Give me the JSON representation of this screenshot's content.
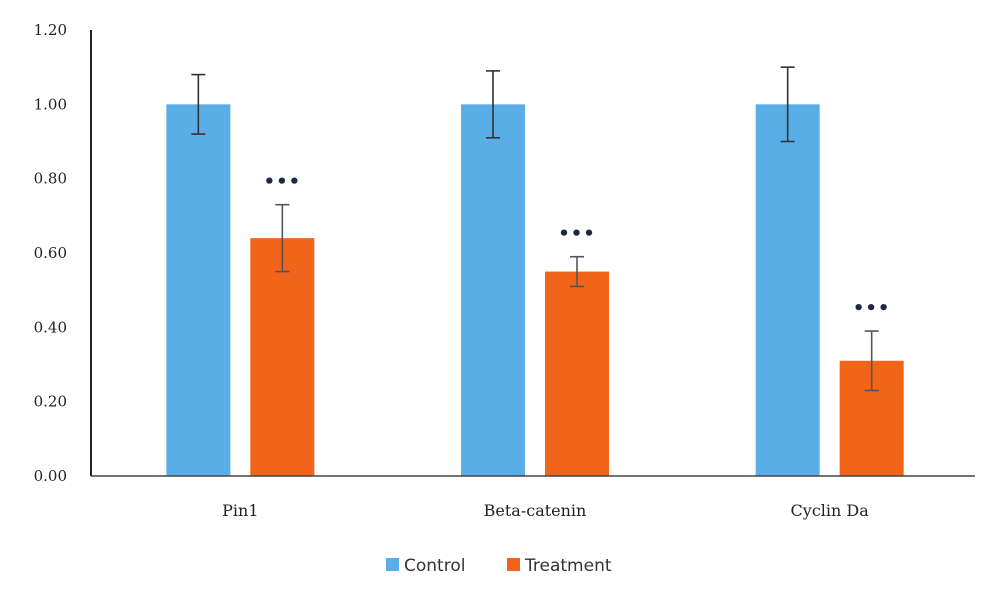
{
  "chart_data": {
    "type": "bar",
    "title": "",
    "xlabel": "",
    "ylabel": "",
    "ylim": [
      0,
      1.2
    ],
    "yticks": [
      "0.00",
      "0.20",
      "0.40",
      "0.60",
      "0.80",
      "1.00",
      "1.20"
    ],
    "categories": [
      "Pin1",
      "Beta-catenin",
      "Cyclin Da"
    ],
    "series": [
      {
        "name": "Control",
        "color": "#5aaee8",
        "values": [
          1.0,
          1.0,
          1.0
        ],
        "errors": [
          0.08,
          0.09,
          0.1
        ],
        "significance": [
          "",
          "",
          ""
        ]
      },
      {
        "name": "Treatment",
        "color": "#f26419",
        "values": [
          0.64,
          0.55,
          0.31
        ],
        "errors": [
          0.09,
          0.04,
          0.08
        ],
        "significance": [
          "•••",
          "•••",
          "•••"
        ]
      }
    ],
    "legend_position": "bottom-center",
    "grid": false
  }
}
